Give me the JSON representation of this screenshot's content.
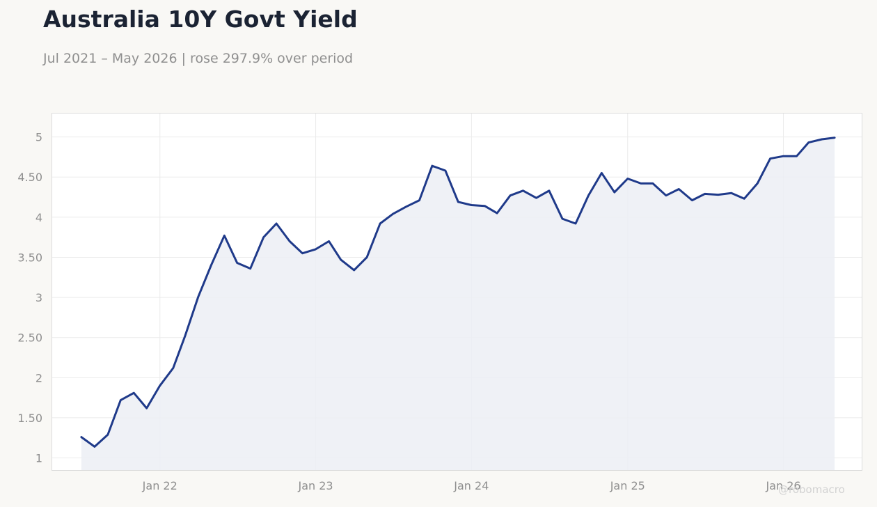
{
  "title": "Australia 10Y Govt Yield",
  "subtitle": "Jul 2021 – May 2026 | rose 297.9% over period",
  "credit": "@robomacro",
  "colors": {
    "line": "#1f3a8a",
    "fill": "#eceef5",
    "background": "#f9f8f5",
    "plot_background": "#ffffff",
    "grid": "#ebebeb",
    "title": "#1b2333",
    "muted_text": "#8f8f8f"
  },
  "chart_data": {
    "type": "area",
    "x": [
      "2021-07",
      "2021-08",
      "2021-09",
      "2021-10",
      "2021-11",
      "2021-12",
      "2022-01",
      "2022-02",
      "2022-03",
      "2022-04",
      "2022-05",
      "2022-06",
      "2022-07",
      "2022-08",
      "2022-09",
      "2022-10",
      "2022-11",
      "2022-12",
      "2023-01",
      "2023-02",
      "2023-03",
      "2023-04",
      "2023-05",
      "2023-06",
      "2023-07",
      "2023-08",
      "2023-09",
      "2023-10",
      "2023-11",
      "2023-12",
      "2024-01",
      "2024-02",
      "2024-03",
      "2024-04",
      "2024-05",
      "2024-06",
      "2024-07",
      "2024-08",
      "2024-09",
      "2024-10",
      "2024-11",
      "2024-12",
      "2025-01",
      "2025-02",
      "2025-03",
      "2025-04",
      "2025-05",
      "2025-06",
      "2025-07",
      "2025-08",
      "2025-09",
      "2025-10",
      "2025-11",
      "2025-12",
      "2026-01",
      "2026-02",
      "2026-03",
      "2026-04",
      "2026-05"
    ],
    "series": [
      {
        "values": [
          1.26,
          1.14,
          1.29,
          1.72,
          1.81,
          1.62,
          1.9,
          2.12,
          2.52,
          3.01,
          3.4,
          3.77,
          3.43,
          3.36,
          3.75,
          3.92,
          3.7,
          3.55,
          3.6,
          3.7,
          3.47,
          3.34,
          3.5,
          3.92,
          4.04,
          4.13,
          4.21,
          4.64,
          4.58,
          4.19,
          4.15,
          4.14,
          4.05,
          4.27,
          4.33,
          4.24,
          4.33,
          3.98,
          3.92,
          4.27,
          4.55,
          4.31,
          4.48,
          4.42,
          4.42,
          4.27,
          4.35,
          4.21,
          4.29,
          4.28,
          4.3,
          4.23,
          4.42,
          4.73,
          4.76,
          4.76,
          4.93,
          4.97,
          4.99
        ]
      }
    ],
    "x_ticks": [
      "2022-01",
      "2023-01",
      "2024-01",
      "2025-01",
      "2026-01"
    ],
    "x_tick_labels": [
      "Jan 22",
      "Jan 23",
      "Jan 24",
      "Jan 25",
      "Jan 26"
    ],
    "y_ticks": [
      1,
      1.5,
      2,
      2.5,
      3,
      3.5,
      4,
      4.5,
      5
    ],
    "y_tick_labels": [
      "1",
      "1.50",
      "2",
      "2.50",
      "3",
      "3.50",
      "4",
      "4.50",
      "5"
    ],
    "ylim": [
      0.84,
      5.3
    ],
    "xlim": [
      "2021-04-22",
      "2026-07-05"
    ],
    "grid": true,
    "legend": "none"
  }
}
